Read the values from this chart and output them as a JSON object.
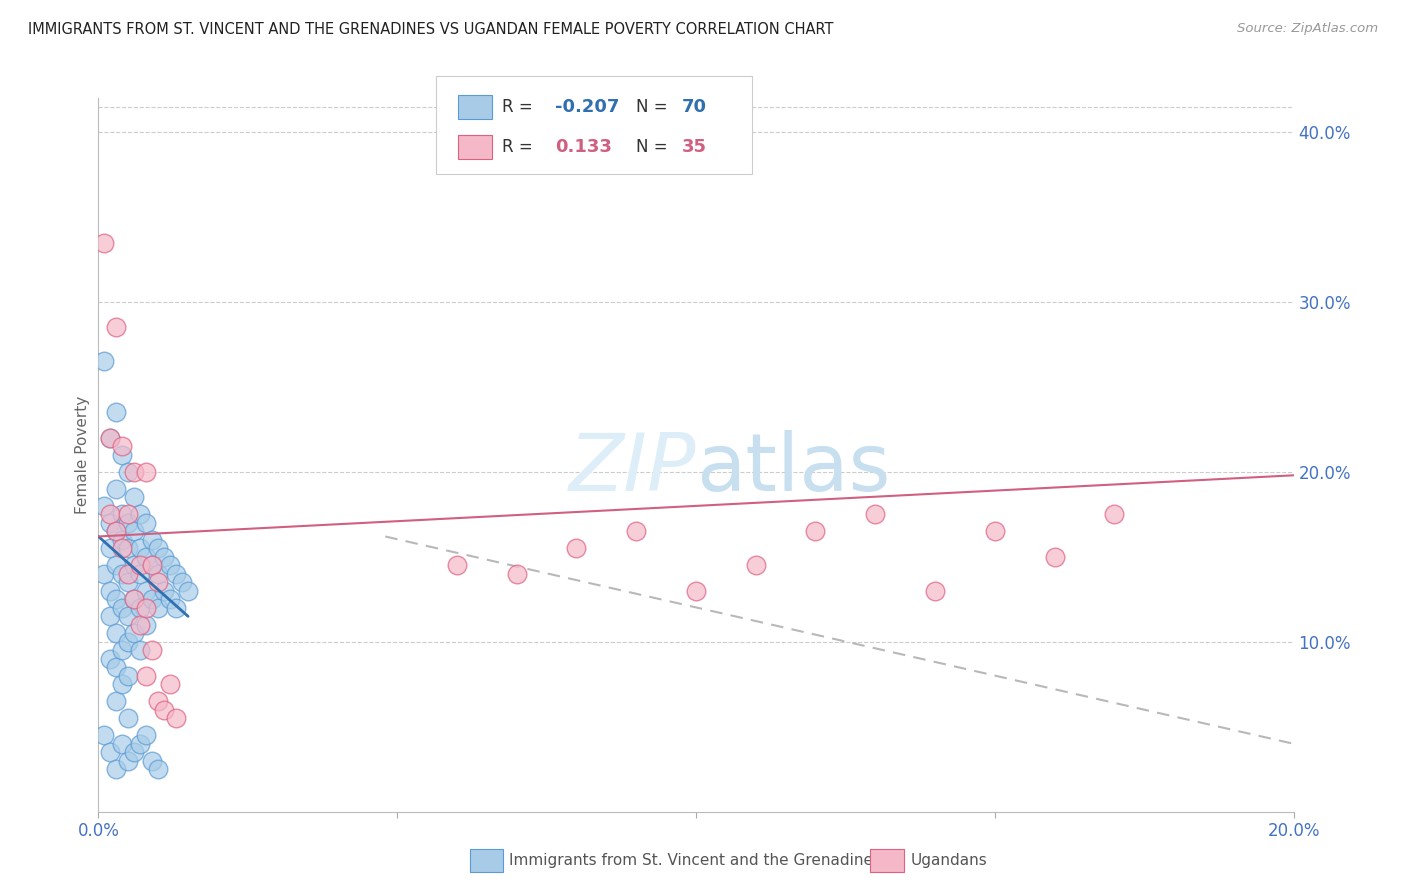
{
  "title": "IMMIGRANTS FROM ST. VINCENT AND THE GRENADINES VS UGANDAN FEMALE POVERTY CORRELATION CHART",
  "source": "Source: ZipAtlas.com",
  "ylabel": "Female Poverty",
  "xlim": [
    0.0,
    0.2
  ],
  "ylim": [
    0.0,
    0.42
  ],
  "blue_color": "#a8cce8",
  "blue_edge_color": "#5b9bd5",
  "pink_color": "#f4b8c8",
  "pink_edge_color": "#e06080",
  "trend_blue": "#3070b0",
  "trend_pink": "#d06080",
  "trend_dashed": "#b8b8b8",
  "axis_label_color": "#4472c4",
  "watermark_color": "#ddeef8",
  "blue_scatter_x": [
    0.001,
    0.001,
    0.001,
    0.002,
    0.002,
    0.002,
    0.002,
    0.002,
    0.002,
    0.003,
    0.003,
    0.003,
    0.003,
    0.003,
    0.003,
    0.003,
    0.003,
    0.004,
    0.004,
    0.004,
    0.004,
    0.004,
    0.004,
    0.004,
    0.005,
    0.005,
    0.005,
    0.005,
    0.005,
    0.005,
    0.005,
    0.005,
    0.006,
    0.006,
    0.006,
    0.006,
    0.006,
    0.007,
    0.007,
    0.007,
    0.007,
    0.007,
    0.008,
    0.008,
    0.008,
    0.008,
    0.009,
    0.009,
    0.009,
    0.01,
    0.01,
    0.01,
    0.011,
    0.011,
    0.012,
    0.012,
    0.013,
    0.013,
    0.014,
    0.015,
    0.001,
    0.002,
    0.003,
    0.004,
    0.005,
    0.006,
    0.007,
    0.008,
    0.009,
    0.01
  ],
  "blue_scatter_y": [
    0.265,
    0.18,
    0.14,
    0.22,
    0.17,
    0.155,
    0.13,
    0.115,
    0.09,
    0.235,
    0.19,
    0.165,
    0.145,
    0.125,
    0.105,
    0.085,
    0.065,
    0.21,
    0.175,
    0.16,
    0.14,
    0.12,
    0.095,
    0.075,
    0.2,
    0.17,
    0.155,
    0.135,
    0.115,
    0.1,
    0.08,
    0.055,
    0.185,
    0.165,
    0.145,
    0.125,
    0.105,
    0.175,
    0.155,
    0.14,
    0.12,
    0.095,
    0.17,
    0.15,
    0.13,
    0.11,
    0.16,
    0.145,
    0.125,
    0.155,
    0.14,
    0.12,
    0.15,
    0.13,
    0.145,
    0.125,
    0.14,
    0.12,
    0.135,
    0.13,
    0.045,
    0.035,
    0.025,
    0.04,
    0.03,
    0.035,
    0.04,
    0.045,
    0.03,
    0.025
  ],
  "pink_scatter_x": [
    0.001,
    0.002,
    0.002,
    0.003,
    0.003,
    0.004,
    0.004,
    0.005,
    0.005,
    0.006,
    0.006,
    0.007,
    0.007,
    0.008,
    0.008,
    0.008,
    0.009,
    0.009,
    0.01,
    0.01,
    0.011,
    0.012,
    0.013,
    0.06,
    0.07,
    0.08,
    0.09,
    0.1,
    0.11,
    0.12,
    0.13,
    0.14,
    0.15,
    0.16,
    0.17
  ],
  "pink_scatter_y": [
    0.335,
    0.22,
    0.175,
    0.285,
    0.165,
    0.215,
    0.155,
    0.175,
    0.14,
    0.2,
    0.125,
    0.145,
    0.11,
    0.2,
    0.12,
    0.08,
    0.095,
    0.145,
    0.135,
    0.065,
    0.06,
    0.075,
    0.055,
    0.145,
    0.14,
    0.155,
    0.165,
    0.13,
    0.145,
    0.165,
    0.175,
    0.13,
    0.165,
    0.15,
    0.175
  ],
  "blue_trend_x": [
    0.0,
    0.015
  ],
  "blue_trend_y": [
    0.162,
    0.115
  ],
  "pink_trend_x": [
    0.0,
    0.2
  ],
  "pink_trend_y": [
    0.162,
    0.198
  ],
  "dashed_trend_x": [
    0.048,
    0.2
  ],
  "dashed_trend_y": [
    0.162,
    0.04
  ]
}
